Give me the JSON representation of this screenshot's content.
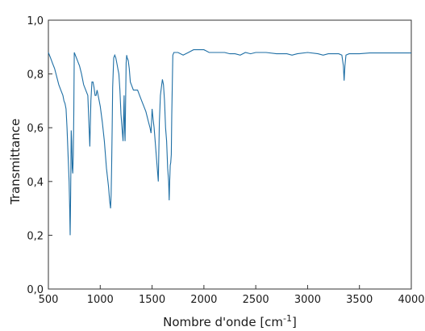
{
  "chart_data": {
    "type": "line",
    "title": "",
    "xlabel": "Nombre d'onde [cm",
    "xlabel_sup": "-1",
    "xlabel_close": "]",
    "ylabel": "Transmittance",
    "xlim": [
      500,
      4000
    ],
    "ylim": [
      0.0,
      1.0
    ],
    "grid": false,
    "legend": "none",
    "line_color": "#1f6fa5",
    "xticks": [
      {
        "value": 500,
        "label": "500"
      },
      {
        "value": 1000,
        "label": "1000"
      },
      {
        "value": 1500,
        "label": "1500"
      },
      {
        "value": 2000,
        "label": "2000"
      },
      {
        "value": 2500,
        "label": "2500"
      },
      {
        "value": 3000,
        "label": "3000"
      },
      {
        "value": 3500,
        "label": "3500"
      },
      {
        "value": 4000,
        "label": "4000"
      }
    ],
    "yticks": [
      {
        "value": 0.0,
        "label": "0,0"
      },
      {
        "value": 0.2,
        "label": "0,2"
      },
      {
        "value": 0.4,
        "label": "0,4"
      },
      {
        "value": 0.6,
        "label": "0,6"
      },
      {
        "value": 0.8,
        "label": "0,8"
      },
      {
        "value": 1.0,
        "label": "1,0"
      }
    ],
    "series": [
      {
        "x": [
          500,
          520,
          540,
          560,
          580,
          600,
          620,
          640,
          650,
          660,
          670,
          680,
          690,
          700,
          705,
          710,
          715,
          720,
          725,
          730,
          735,
          740,
          745,
          750,
          760,
          770,
          780,
          790,
          800,
          820,
          840,
          860,
          880,
          900,
          910,
          920,
          930,
          940,
          950,
          960,
          970,
          980,
          990,
          1000,
          1020,
          1040,
          1060,
          1080,
          1090,
          1100,
          1105,
          1110,
          1115,
          1120,
          1130,
          1140,
          1150,
          1160,
          1170,
          1180,
          1190,
          1200,
          1210,
          1220,
          1225,
          1230,
          1235,
          1240,
          1250,
          1255,
          1260,
          1270,
          1280,
          1290,
          1300,
          1320,
          1340,
          1360,
          1380,
          1400,
          1420,
          1440,
          1460,
          1480,
          1490,
          1500,
          1510,
          1520,
          1530,
          1540,
          1550,
          1560,
          1570,
          1580,
          1590,
          1600,
          1610,
          1620,
          1630,
          1640,
          1650,
          1660,
          1665,
          1670,
          1675,
          1680,
          1685,
          1690,
          1700,
          1710,
          1720,
          1750,
          1800,
          1850,
          1900,
          1950,
          2000,
          2050,
          2100,
          2150,
          2200,
          2250,
          2300,
          2350,
          2400,
          2450,
          2500,
          2600,
          2700,
          2800,
          2850,
          2900,
          3000,
          3100,
          3150,
          3200,
          3250,
          3300,
          3330,
          3345,
          3352,
          3360,
          3370,
          3400,
          3500,
          3600,
          3700,
          3800,
          3900,
          4000
        ],
        "y": [
          0.88,
          0.86,
          0.84,
          0.82,
          0.79,
          0.76,
          0.74,
          0.72,
          0.7,
          0.69,
          0.67,
          0.6,
          0.5,
          0.4,
          0.3,
          0.2,
          0.35,
          0.59,
          0.55,
          0.45,
          0.43,
          0.5,
          0.65,
          0.88,
          0.87,
          0.86,
          0.85,
          0.84,
          0.83,
          0.8,
          0.76,
          0.74,
          0.72,
          0.53,
          0.7,
          0.77,
          0.77,
          0.75,
          0.72,
          0.72,
          0.74,
          0.72,
          0.7,
          0.68,
          0.62,
          0.55,
          0.45,
          0.38,
          0.33,
          0.3,
          0.35,
          0.45,
          0.6,
          0.75,
          0.86,
          0.87,
          0.86,
          0.84,
          0.82,
          0.8,
          0.74,
          0.65,
          0.6,
          0.55,
          0.63,
          0.72,
          0.6,
          0.55,
          0.84,
          0.87,
          0.86,
          0.85,
          0.82,
          0.77,
          0.76,
          0.74,
          0.74,
          0.74,
          0.72,
          0.7,
          0.68,
          0.66,
          0.63,
          0.6,
          0.58,
          0.67,
          0.63,
          0.6,
          0.55,
          0.5,
          0.45,
          0.4,
          0.62,
          0.72,
          0.75,
          0.78,
          0.76,
          0.7,
          0.6,
          0.55,
          0.45,
          0.4,
          0.33,
          0.4,
          0.46,
          0.47,
          0.5,
          0.65,
          0.87,
          0.88,
          0.88,
          0.88,
          0.87,
          0.88,
          0.89,
          0.89,
          0.89,
          0.88,
          0.88,
          0.88,
          0.88,
          0.875,
          0.875,
          0.87,
          0.88,
          0.875,
          0.88,
          0.88,
          0.875,
          0.875,
          0.87,
          0.875,
          0.88,
          0.875,
          0.87,
          0.875,
          0.875,
          0.875,
          0.87,
          0.83,
          0.775,
          0.83,
          0.87,
          0.875,
          0.875,
          0.878,
          0.878,
          0.878,
          0.878,
          0.878
        ]
      }
    ]
  }
}
